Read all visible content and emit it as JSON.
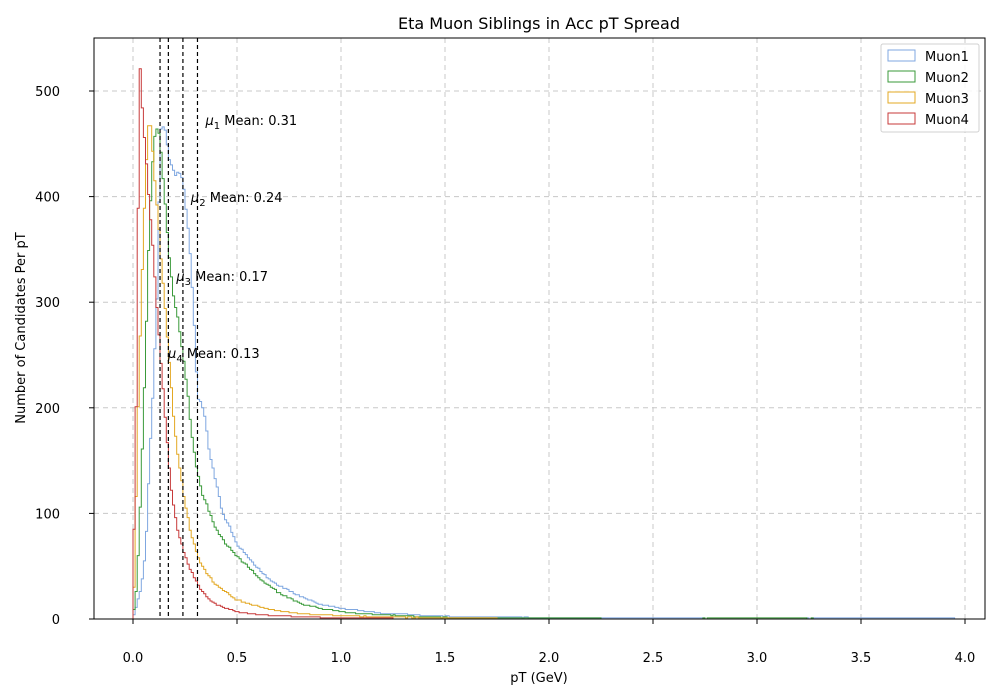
{
  "chart_data": {
    "type": "histogram",
    "title": "Eta Muon Siblings in Acc pT Spread",
    "xlabel": "pT (GeV)",
    "ylabel": "Number of Candidates Per pT",
    "xlim": [
      -0.2,
      4.1
    ],
    "ylim": [
      0,
      550
    ],
    "xticks": [
      "0.0",
      "0.5",
      "1.0",
      "1.5",
      "2.0",
      "2.5",
      "3.0",
      "3.5",
      "4.0"
    ],
    "yticks": [
      "0",
      "100",
      "200",
      "300",
      "400",
      "500"
    ],
    "grid": true,
    "legend_position": "top-right",
    "colors": {
      "Muon1": "#7fa7e0",
      "Muon2": "#3a9a3a",
      "Muon3": "#e3a823",
      "Muon4": "#c73a3a"
    },
    "series": [
      {
        "name": "Muon1",
        "mean": 0.31,
        "points": [
          [
            0.0,
            0
          ],
          [
            0.04,
            30
          ],
          [
            0.06,
            62
          ],
          [
            0.08,
            150
          ],
          [
            0.1,
            230
          ],
          [
            0.12,
            330
          ],
          [
            0.13,
            460
          ],
          [
            0.15,
            470
          ],
          [
            0.17,
            440
          ],
          [
            0.2,
            420
          ],
          [
            0.23,
            425
          ],
          [
            0.25,
            400
          ],
          [
            0.27,
            360
          ],
          [
            0.29,
            300
          ],
          [
            0.31,
            210
          ],
          [
            0.34,
            200
          ],
          [
            0.37,
            155
          ],
          [
            0.4,
            130
          ],
          [
            0.43,
            100
          ],
          [
            0.46,
            90
          ],
          [
            0.5,
            70
          ],
          [
            0.55,
            60
          ],
          [
            0.6,
            48
          ],
          [
            0.65,
            38
          ],
          [
            0.7,
            32
          ],
          [
            0.75,
            27
          ],
          [
            0.8,
            22
          ],
          [
            0.9,
            14
          ],
          [
            1.0,
            10
          ],
          [
            1.1,
            8
          ],
          [
            1.2,
            5
          ],
          [
            1.3,
            5
          ],
          [
            1.4,
            3
          ],
          [
            1.6,
            2
          ],
          [
            1.8,
            2
          ],
          [
            2.0,
            1
          ],
          [
            2.5,
            1
          ],
          [
            3.0,
            0
          ],
          [
            3.5,
            1
          ],
          [
            3.9,
            1
          ],
          [
            4.0,
            0
          ]
        ]
      },
      {
        "name": "Muon2",
        "mean": 0.24,
        "points": [
          [
            0.0,
            0
          ],
          [
            0.02,
            35
          ],
          [
            0.04,
            130
          ],
          [
            0.06,
            250
          ],
          [
            0.08,
            380
          ],
          [
            0.1,
            450
          ],
          [
            0.12,
            470
          ],
          [
            0.14,
            430
          ],
          [
            0.16,
            380
          ],
          [
            0.18,
            330
          ],
          [
            0.2,
            300
          ],
          [
            0.22,
            280
          ],
          [
            0.24,
            250
          ],
          [
            0.26,
            220
          ],
          [
            0.28,
            180
          ],
          [
            0.3,
            150
          ],
          [
            0.33,
            120
          ],
          [
            0.36,
            105
          ],
          [
            0.4,
            85
          ],
          [
            0.45,
            70
          ],
          [
            0.5,
            60
          ],
          [
            0.55,
            50
          ],
          [
            0.6,
            40
          ],
          [
            0.65,
            32
          ],
          [
            0.7,
            25
          ],
          [
            0.8,
            15
          ],
          [
            0.9,
            10
          ],
          [
            1.0,
            7
          ],
          [
            1.1,
            5
          ],
          [
            1.2,
            4
          ],
          [
            1.4,
            2
          ],
          [
            1.6,
            1
          ],
          [
            2.0,
            1
          ],
          [
            2.5,
            0
          ],
          [
            3.0,
            1
          ],
          [
            3.5,
            0
          ],
          [
            4.0,
            0
          ]
        ]
      },
      {
        "name": "Muon3",
        "mean": 0.17,
        "points": [
          [
            0.0,
            0
          ],
          [
            0.01,
            60
          ],
          [
            0.02,
            170
          ],
          [
            0.04,
            300
          ],
          [
            0.06,
            420
          ],
          [
            0.08,
            480
          ],
          [
            0.1,
            430
          ],
          [
            0.12,
            380
          ],
          [
            0.14,
            330
          ],
          [
            0.16,
            280
          ],
          [
            0.18,
            230
          ],
          [
            0.2,
            180
          ],
          [
            0.22,
            150
          ],
          [
            0.25,
            110
          ],
          [
            0.28,
            80
          ],
          [
            0.32,
            55
          ],
          [
            0.36,
            42
          ],
          [
            0.4,
            32
          ],
          [
            0.45,
            25
          ],
          [
            0.5,
            18
          ],
          [
            0.6,
            12
          ],
          [
            0.7,
            8
          ],
          [
            0.8,
            5
          ],
          [
            0.9,
            4
          ],
          [
            1.0,
            3
          ],
          [
            1.2,
            2
          ],
          [
            1.5,
            1
          ],
          [
            2.0,
            0
          ],
          [
            2.5,
            0
          ],
          [
            3.0,
            0
          ],
          [
            3.5,
            0
          ],
          [
            4.0,
            0
          ]
        ]
      },
      {
        "name": "Muon4",
        "mean": 0.13,
        "points": [
          [
            0.0,
            0
          ],
          [
            0.005,
            85
          ],
          [
            0.015,
            200
          ],
          [
            0.025,
            390
          ],
          [
            0.035,
            520
          ],
          [
            0.05,
            470
          ],
          [
            0.065,
            430
          ],
          [
            0.08,
            390
          ],
          [
            0.1,
            340
          ],
          [
            0.12,
            280
          ],
          [
            0.14,
            230
          ],
          [
            0.16,
            180
          ],
          [
            0.18,
            130
          ],
          [
            0.2,
            100
          ],
          [
            0.22,
            80
          ],
          [
            0.25,
            60
          ],
          [
            0.28,
            45
          ],
          [
            0.32,
            30
          ],
          [
            0.36,
            20
          ],
          [
            0.4,
            14
          ],
          [
            0.45,
            10
          ],
          [
            0.5,
            7
          ],
          [
            0.6,
            4
          ],
          [
            0.7,
            3
          ],
          [
            0.8,
            2
          ],
          [
            1.0,
            1
          ],
          [
            1.5,
            0
          ],
          [
            2.0,
            0
          ],
          [
            3.0,
            0
          ],
          [
            4.0,
            0
          ]
        ]
      }
    ],
    "mean_lines": [
      {
        "value": 0.31,
        "label_symbol": "μ",
        "label_sub": "1",
        "label_text": " Mean: 0.31",
        "y": 468
      },
      {
        "value": 0.24,
        "label_symbol": "μ",
        "label_sub": "2",
        "label_text": " Mean: 0.24",
        "y": 395
      },
      {
        "value": 0.17,
        "label_symbol": "μ",
        "label_sub": "3",
        "label_text": " Mean: 0.17",
        "y": 320
      },
      {
        "value": 0.13,
        "label_symbol": "μ",
        "label_sub": "4",
        "label_text": " Mean: 0.13",
        "y": 247
      }
    ]
  }
}
